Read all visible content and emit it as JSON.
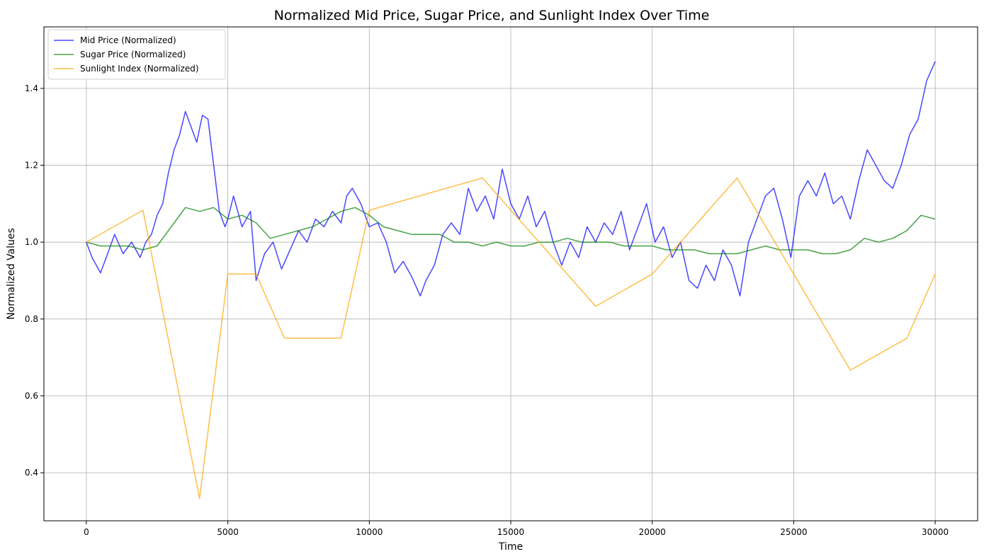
{
  "chart_data": {
    "type": "line",
    "title": "Normalized Mid Price, Sugar Price, and Sunlight Index Over Time",
    "xlabel": "Time",
    "ylabel": "Normalized Values",
    "xlim": [
      -1500,
      31500
    ],
    "ylim": [
      0.275,
      1.56
    ],
    "xticks": [
      0,
      5000,
      10000,
      15000,
      20000,
      25000,
      30000
    ],
    "yticks": [
      0.4,
      0.6,
      0.8,
      1.0,
      1.2,
      1.4
    ],
    "xtick_labels": [
      "0",
      "5000",
      "10000",
      "15000",
      "20000",
      "25000",
      "30000"
    ],
    "ytick_labels": [
      "0.4",
      "0.6",
      "0.8",
      "1.0",
      "1.2",
      "1.4"
    ],
    "grid": true,
    "legend_position": "top-left",
    "series": [
      {
        "name": "Mid Price (Normalized)",
        "color": "#0000ff",
        "x": [
          0,
          200,
          500,
          800,
          1000,
          1300,
          1600,
          1900,
          2100,
          2300,
          2500,
          2700,
          2900,
          3100,
          3300,
          3500,
          3700,
          3900,
          4100,
          4300,
          4500,
          4700,
          4900,
          5000,
          5200,
          5500,
          5800,
          6000,
          6300,
          6600,
          6900,
          7200,
          7500,
          7800,
          8100,
          8400,
          8700,
          9000,
          9200,
          9400,
          9700,
          10000,
          10300,
          10600,
          10900,
          11200,
          11500,
          11800,
          12000,
          12300,
          12600,
          12900,
          13200,
          13500,
          13800,
          14100,
          14400,
          14700,
          15000,
          15300,
          15600,
          15900,
          16200,
          16500,
          16800,
          17100,
          17400,
          17700,
          18000,
          18300,
          18600,
          18900,
          19200,
          19500,
          19800,
          20100,
          20400,
          20700,
          21000,
          21300,
          21600,
          21900,
          22200,
          22500,
          22800,
          23100,
          23400,
          23700,
          24000,
          24300,
          24600,
          24900,
          25200,
          25500,
          25800,
          26100,
          26400,
          26700,
          27000,
          27300,
          27600,
          27900,
          28200,
          28500,
          28800,
          29100,
          29400,
          29700,
          30000
        ],
        "y": [
          1.0,
          0.96,
          0.92,
          0.98,
          1.02,
          0.97,
          1.0,
          0.96,
          1.0,
          1.02,
          1.07,
          1.1,
          1.18,
          1.24,
          1.28,
          1.34,
          1.3,
          1.26,
          1.33,
          1.32,
          1.2,
          1.08,
          1.04,
          1.06,
          1.12,
          1.04,
          1.08,
          0.9,
          0.97,
          1.0,
          0.93,
          0.98,
          1.03,
          1.0,
          1.06,
          1.04,
          1.08,
          1.05,
          1.12,
          1.14,
          1.1,
          1.04,
          1.05,
          1.0,
          0.92,
          0.95,
          0.91,
          0.86,
          0.9,
          0.94,
          1.02,
          1.05,
          1.02,
          1.14,
          1.08,
          1.12,
          1.06,
          1.19,
          1.1,
          1.06,
          1.12,
          1.04,
          1.08,
          1.0,
          0.94,
          1.0,
          0.96,
          1.04,
          1.0,
          1.05,
          1.02,
          1.08,
          0.98,
          1.04,
          1.1,
          1.0,
          1.04,
          0.96,
          1.0,
          0.9,
          0.88,
          0.94,
          0.9,
          0.98,
          0.94,
          0.86,
          1.0,
          1.06,
          1.12,
          1.14,
          1.06,
          0.96,
          1.12,
          1.16,
          1.12,
          1.18,
          1.1,
          1.12,
          1.06,
          1.16,
          1.24,
          1.2,
          1.16,
          1.14,
          1.2,
          1.28,
          1.32,
          1.42,
          1.47
        ]
      },
      {
        "name": "Sugar Price (Normalized)",
        "color": "#008000",
        "x": [
          0,
          500,
          1000,
          1500,
          2000,
          2500,
          3000,
          3500,
          4000,
          4500,
          5000,
          5500,
          6000,
          6500,
          7000,
          7500,
          8000,
          8500,
          9000,
          9500,
          10000,
          10500,
          11000,
          11500,
          12000,
          12500,
          13000,
          13500,
          14000,
          14500,
          15000,
          15500,
          16000,
          16500,
          17000,
          17500,
          18000,
          18500,
          19000,
          19500,
          20000,
          20500,
          21000,
          21500,
          22000,
          22500,
          23000,
          23500,
          24000,
          24500,
          25000,
          25500,
          26000,
          26500,
          27000,
          27500,
          28000,
          28500,
          29000,
          29500,
          30000
        ],
        "y": [
          1.0,
          0.99,
          0.99,
          0.99,
          0.98,
          0.99,
          1.04,
          1.09,
          1.08,
          1.09,
          1.06,
          1.07,
          1.05,
          1.01,
          1.02,
          1.03,
          1.04,
          1.06,
          1.08,
          1.09,
          1.07,
          1.04,
          1.03,
          1.02,
          1.02,
          1.02,
          1.0,
          1.0,
          0.99,
          1.0,
          0.99,
          0.99,
          1.0,
          1.0,
          1.01,
          1.0,
          1.0,
          1.0,
          0.99,
          0.99,
          0.99,
          0.98,
          0.98,
          0.98,
          0.97,
          0.97,
          0.97,
          0.98,
          0.99,
          0.98,
          0.98,
          0.98,
          0.97,
          0.97,
          0.98,
          1.01,
          1.0,
          1.01,
          1.03,
          1.07,
          1.06
        ]
      },
      {
        "name": "Sunlight Index (Normalized)",
        "color": "#ffa500",
        "x": [
          0,
          2000,
          4000,
          5000,
          6000,
          7000,
          9000,
          10000,
          14000,
          18000,
          20000,
          23000,
          27000,
          29000,
          30000
        ],
        "y": [
          1.0,
          1.083,
          0.333,
          0.917,
          0.917,
          0.75,
          0.75,
          1.083,
          1.167,
          0.833,
          0.917,
          1.167,
          0.667,
          0.75,
          0.917
        ]
      }
    ]
  }
}
